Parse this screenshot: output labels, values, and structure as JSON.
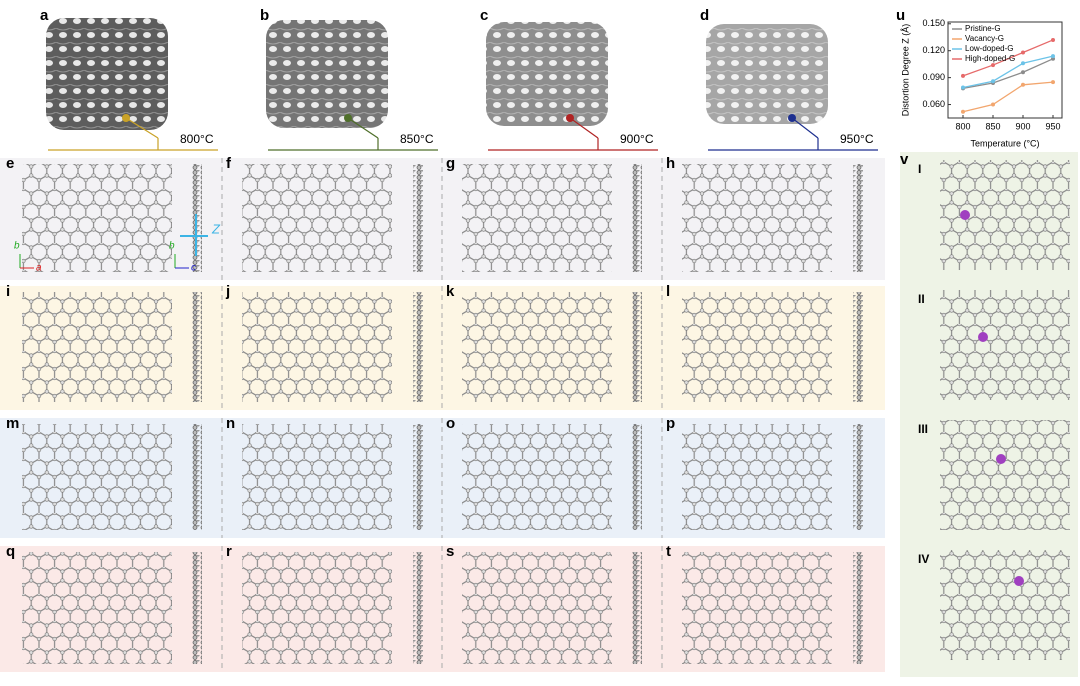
{
  "top_panels": [
    {
      "label": "a",
      "temperature": "800°C",
      "color": "#c9a227"
    },
    {
      "label": "b",
      "temperature": "850°C",
      "color": "#4f6f2a"
    },
    {
      "label": "c",
      "temperature": "900°C",
      "color": "#b02323"
    },
    {
      "label": "d",
      "temperature": "950°C",
      "color": "#1d2f8f"
    }
  ],
  "rows": [
    {
      "labels": [
        "e",
        "f",
        "g",
        "h"
      ],
      "color": "#f3f2f5"
    },
    {
      "labels": [
        "i",
        "j",
        "k",
        "l"
      ],
      "color": "#fdf6e4"
    },
    {
      "labels": [
        "m",
        "n",
        "o",
        "p"
      ],
      "color": "#eaf0f8"
    },
    {
      "labels": [
        "q",
        "r",
        "s",
        "t"
      ],
      "color": "#fbe9e7"
    }
  ],
  "axes": {
    "in_plane": [
      "b",
      "a"
    ],
    "side": [
      "b",
      "c"
    ],
    "z": "Z"
  },
  "side_panel": {
    "label": "v",
    "stages": [
      "I",
      "II",
      "III",
      "IV"
    ],
    "color": "#eef3e6"
  },
  "chart_data": {
    "type": "line",
    "label": "u",
    "x": [
      800,
      850,
      900,
      950
    ],
    "xlim": [
      775,
      965
    ],
    "xticks": [
      800,
      850,
      900,
      950
    ],
    "ylim": [
      0.045,
      0.152
    ],
    "yticks": [
      {
        "value": 0.06,
        "label": "0.060"
      },
      {
        "value": 0.09,
        "label": "0.090"
      },
      {
        "value": 0.12,
        "label": "0.120"
      },
      {
        "value": 0.15,
        "label": "0.150"
      }
    ],
    "x_label": "Temperature (°C)",
    "y_label": "Distortion Degree Z (Å)",
    "series": [
      {
        "name": "Pristine-G",
        "color": "#8c8c8c",
        "values": [
          0.078,
          0.084,
          0.096,
          0.111
        ]
      },
      {
        "name": "Vacancy-G",
        "color": "#f2a66e",
        "values": [
          0.052,
          0.06,
          0.082,
          0.085
        ]
      },
      {
        "name": "Low-doped-G",
        "color": "#6cc3e8",
        "values": [
          0.079,
          0.086,
          0.106,
          0.114
        ]
      },
      {
        "name": "High-doped-G",
        "color": "#e66a6a",
        "values": [
          0.092,
          0.104,
          0.118,
          0.132
        ]
      }
    ]
  }
}
